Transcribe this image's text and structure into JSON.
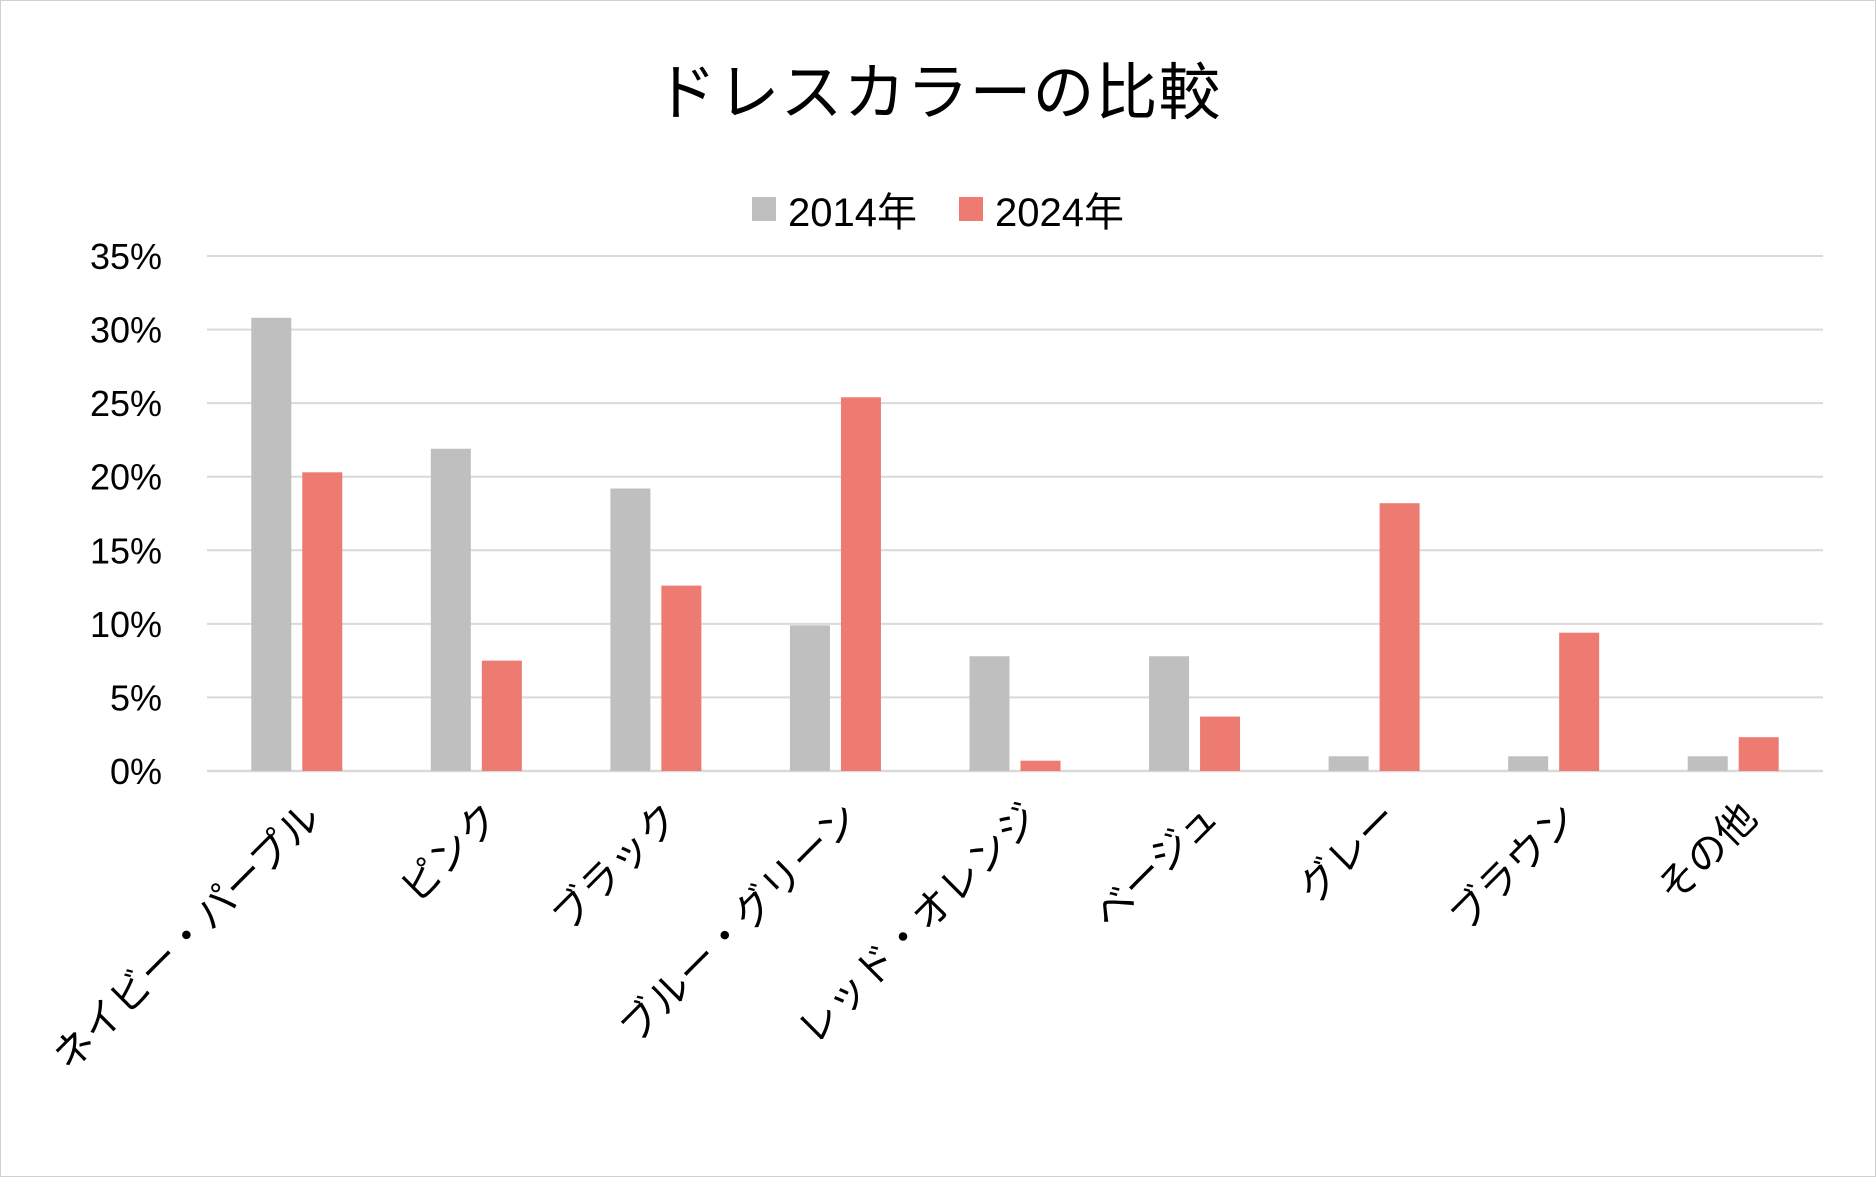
{
  "colors": {
    "series_2014": "#bfbfbf",
    "series_2024": "#ee7b72",
    "grid": "#d9d9d9"
  },
  "chart_data": {
    "type": "bar",
    "title": "ドレスカラーの比較",
    "xlabel": "",
    "ylabel": "",
    "ylim": [
      0,
      35
    ],
    "y_unit": "%",
    "y_ticks": [
      "0%",
      "5%",
      "10%",
      "15%",
      "20%",
      "25%",
      "30%",
      "35%"
    ],
    "grid": true,
    "legend_position": "top",
    "categories": [
      "ネイビー・パープル",
      "ピンク",
      "ブラック",
      "ブルー・グリーン",
      "レッド・オレンジ",
      "ベージュ",
      "グレー",
      "ブラウン",
      "その他"
    ],
    "series": [
      {
        "name": "2014年",
        "values": [
          30.8,
          21.9,
          19.2,
          9.9,
          7.8,
          7.8,
          1.0,
          1.0,
          1.0
        ]
      },
      {
        "name": "2024年",
        "values": [
          20.3,
          7.5,
          12.6,
          25.4,
          0.7,
          3.7,
          18.2,
          9.4,
          2.3
        ]
      }
    ]
  }
}
